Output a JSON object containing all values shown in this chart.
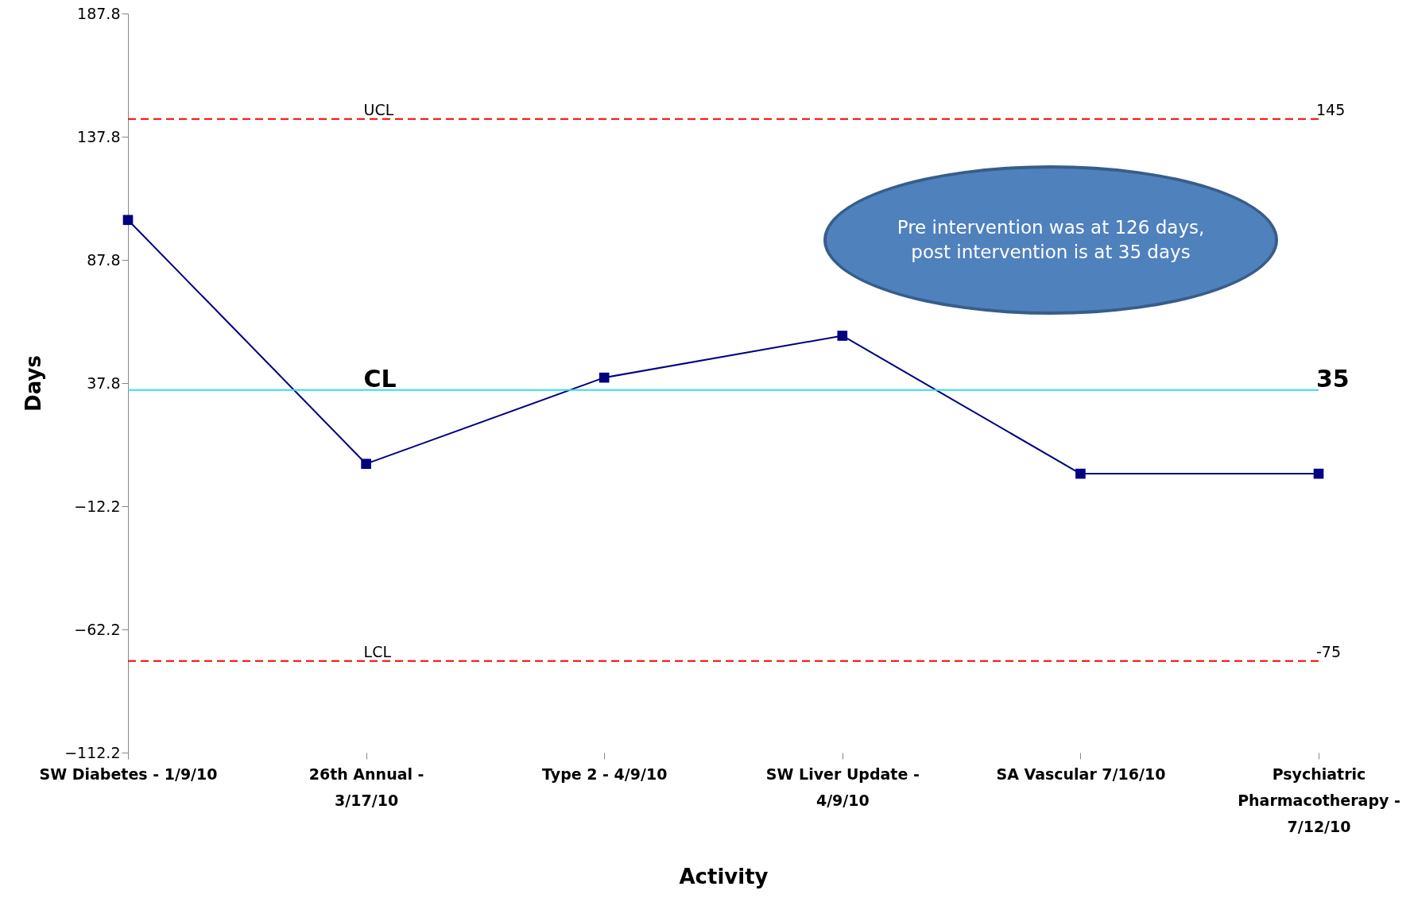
{
  "chart_data": {
    "type": "line",
    "xlabel": "Activity",
    "ylabel": "Days",
    "categories": [
      "SW Diabetes - 1/9/10",
      "26th Annual  - 3/17/10",
      "Type 2  - 4/9/10",
      "SW Liver Update - 4/9/10",
      "SA Vascular 7/16/10",
      "Psychiatric Pharmacotherapy - 7/12/10"
    ],
    "series": [
      {
        "color": "#000080",
        "values": [
          104,
          5,
          40,
          57,
          1,
          1
        ]
      }
    ],
    "ylim": [
      -112.2,
      187.8
    ],
    "yticks": [
      -112.2,
      -62.2,
      -12.2,
      37.8,
      87.8,
      137.8,
      187.8
    ],
    "ref_lines": [
      {
        "axis": "y",
        "value": 145,
        "label": "UCL",
        "color": "#ff0000",
        "line_style": "dashed"
      },
      {
        "axis": "y",
        "value": 35,
        "label": "CL",
        "color": "#33ddee",
        "line_style": "solid"
      },
      {
        "axis": "y",
        "value": -75,
        "label": "LCL",
        "color": "#ff0000",
        "line_style": "dashed"
      }
    ],
    "annotations": [
      "Pre intervention was at  126 days, post intervention is at 35 days",
      {
        "text": "145",
        "x": "Psychiatric Pharmacotherapy - 7/12/10",
        "y": 145
      },
      {
        "text": "35",
        "x": "Psychiatric Pharmacotherapy - 7/12/10",
        "y": 35
      },
      {
        "text": "-75",
        "x": "Psychiatric Pharmacotherapy - 7/12/10",
        "y": -75
      }
    ],
    "marker": "square",
    "line_style": "solid",
    "grid": false
  }
}
